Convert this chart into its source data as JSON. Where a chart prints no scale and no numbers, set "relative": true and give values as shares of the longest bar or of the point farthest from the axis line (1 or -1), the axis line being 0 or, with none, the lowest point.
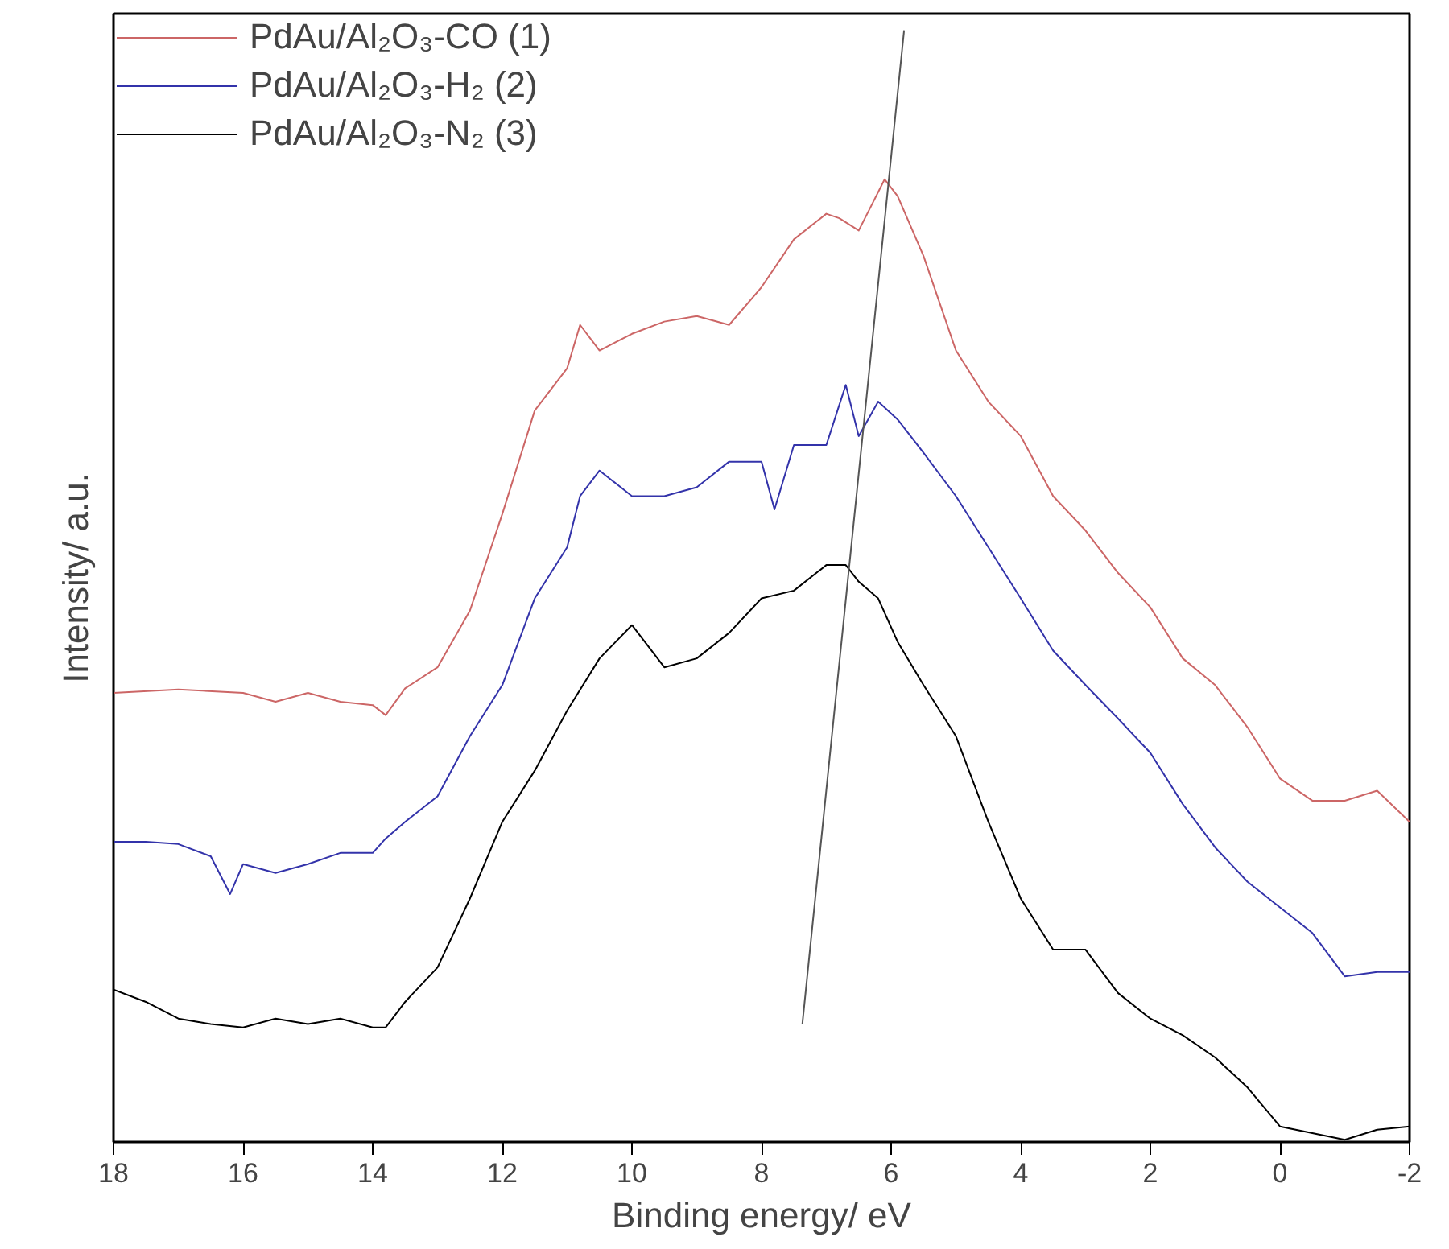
{
  "chart_data": {
    "type": "line",
    "relative": true,
    "xlabel": "Binding energy/ eV",
    "ylabel": "Intensity/ a.u.",
    "xlim": [
      18,
      -2
    ],
    "xticks": [
      18,
      16,
      14,
      12,
      10,
      8,
      6,
      4,
      2,
      0,
      -2
    ],
    "grid": false,
    "legend": "top left",
    "marker": "none",
    "line_style": "solid",
    "series": [
      {
        "name": "PdAu/Al₂O₃-CO (1)",
        "color": "#cc6666",
        "x": [
          18,
          17,
          16,
          15.5,
          15,
          14.5,
          14,
          13.8,
          13.5,
          13,
          12.5,
          12,
          11.5,
          11,
          10.8,
          10.5,
          10,
          9.5,
          9,
          8.5,
          8,
          7.5,
          7,
          6.8,
          6.5,
          6.3,
          6.1,
          5.9,
          5.5,
          5,
          4.5,
          4,
          3.5,
          3,
          2.5,
          2,
          1.5,
          1,
          0.5,
          0,
          -0.5,
          -1,
          -1.5,
          -2
        ],
        "values": [
          0.404,
          0.407,
          0.404,
          0.396,
          0.404,
          0.396,
          0.393,
          0.384,
          0.408,
          0.427,
          0.478,
          0.565,
          0.658,
          0.696,
          0.735,
          0.712,
          0.727,
          0.738,
          0.743,
          0.735,
          0.769,
          0.812,
          0.835,
          0.831,
          0.82,
          0.843,
          0.866,
          0.851,
          0.797,
          0.712,
          0.666,
          0.635,
          0.581,
          0.55,
          0.512,
          0.481,
          0.435,
          0.411,
          0.373,
          0.327,
          0.307,
          0.307,
          0.316,
          0.288
        ]
      },
      {
        "name": "PdAu/Al₂O₃-H₂ (2)",
        "color": "#3333aa",
        "x": [
          18,
          17.5,
          17,
          16.5,
          16.2,
          16,
          15.5,
          15,
          14.5,
          14,
          13.8,
          13.5,
          13,
          12.5,
          12,
          11.5,
          11,
          10.8,
          10.5,
          10,
          9.5,
          9,
          8.5,
          8,
          7.8,
          7.5,
          7,
          6.7,
          6.5,
          6.2,
          5.9,
          5.5,
          5,
          4.5,
          4,
          3.5,
          3,
          2.5,
          2,
          1.5,
          1,
          0.5,
          0,
          -0.5,
          -1,
          -1.5,
          -2
        ],
        "values": [
          0.27,
          0.27,
          0.268,
          0.257,
          0.223,
          0.25,
          0.242,
          0.25,
          0.26,
          0.26,
          0.273,
          0.288,
          0.311,
          0.365,
          0.411,
          0.489,
          0.535,
          0.581,
          0.604,
          0.581,
          0.581,
          0.589,
          0.612,
          0.612,
          0.569,
          0.627,
          0.627,
          0.681,
          0.635,
          0.666,
          0.65,
          0.62,
          0.581,
          0.535,
          0.489,
          0.442,
          0.411,
          0.381,
          0.35,
          0.304,
          0.265,
          0.234,
          0.211,
          0.188,
          0.149,
          0.153,
          0.153
        ]
      },
      {
        "name": "PdAu/Al₂O₃-N₂ (3)",
        "color": "#000000",
        "x": [
          18,
          17.5,
          17,
          16.5,
          16,
          15.5,
          15,
          14.5,
          14,
          13.8,
          13.5,
          13,
          12.5,
          12,
          11.5,
          11,
          10.5,
          10,
          9.5,
          9,
          8.5,
          8,
          7.5,
          7,
          6.7,
          6.5,
          6.2,
          5.9,
          5.5,
          5,
          4.5,
          4,
          3.5,
          3,
          2.5,
          2,
          1.5,
          1,
          0.5,
          0,
          -0.5,
          -1,
          -1.5,
          -2
        ],
        "values": [
          0.137,
          0.126,
          0.111,
          0.106,
          0.103,
          0.111,
          0.106,
          0.111,
          0.103,
          0.103,
          0.126,
          0.157,
          0.219,
          0.288,
          0.334,
          0.388,
          0.435,
          0.465,
          0.427,
          0.435,
          0.458,
          0.489,
          0.496,
          0.519,
          0.519,
          0.504,
          0.489,
          0.45,
          0.411,
          0.365,
          0.288,
          0.219,
          0.173,
          0.173,
          0.134,
          0.111,
          0.096,
          0.076,
          0.049,
          0.014,
          0.008,
          0.002,
          0.011,
          0.014
        ]
      },
      {
        "type": "line",
        "color": "#555555",
        "x": [
          7.37,
          5.8
        ],
        "values": [
          0.106,
          1.0
        ]
      }
    ]
  }
}
